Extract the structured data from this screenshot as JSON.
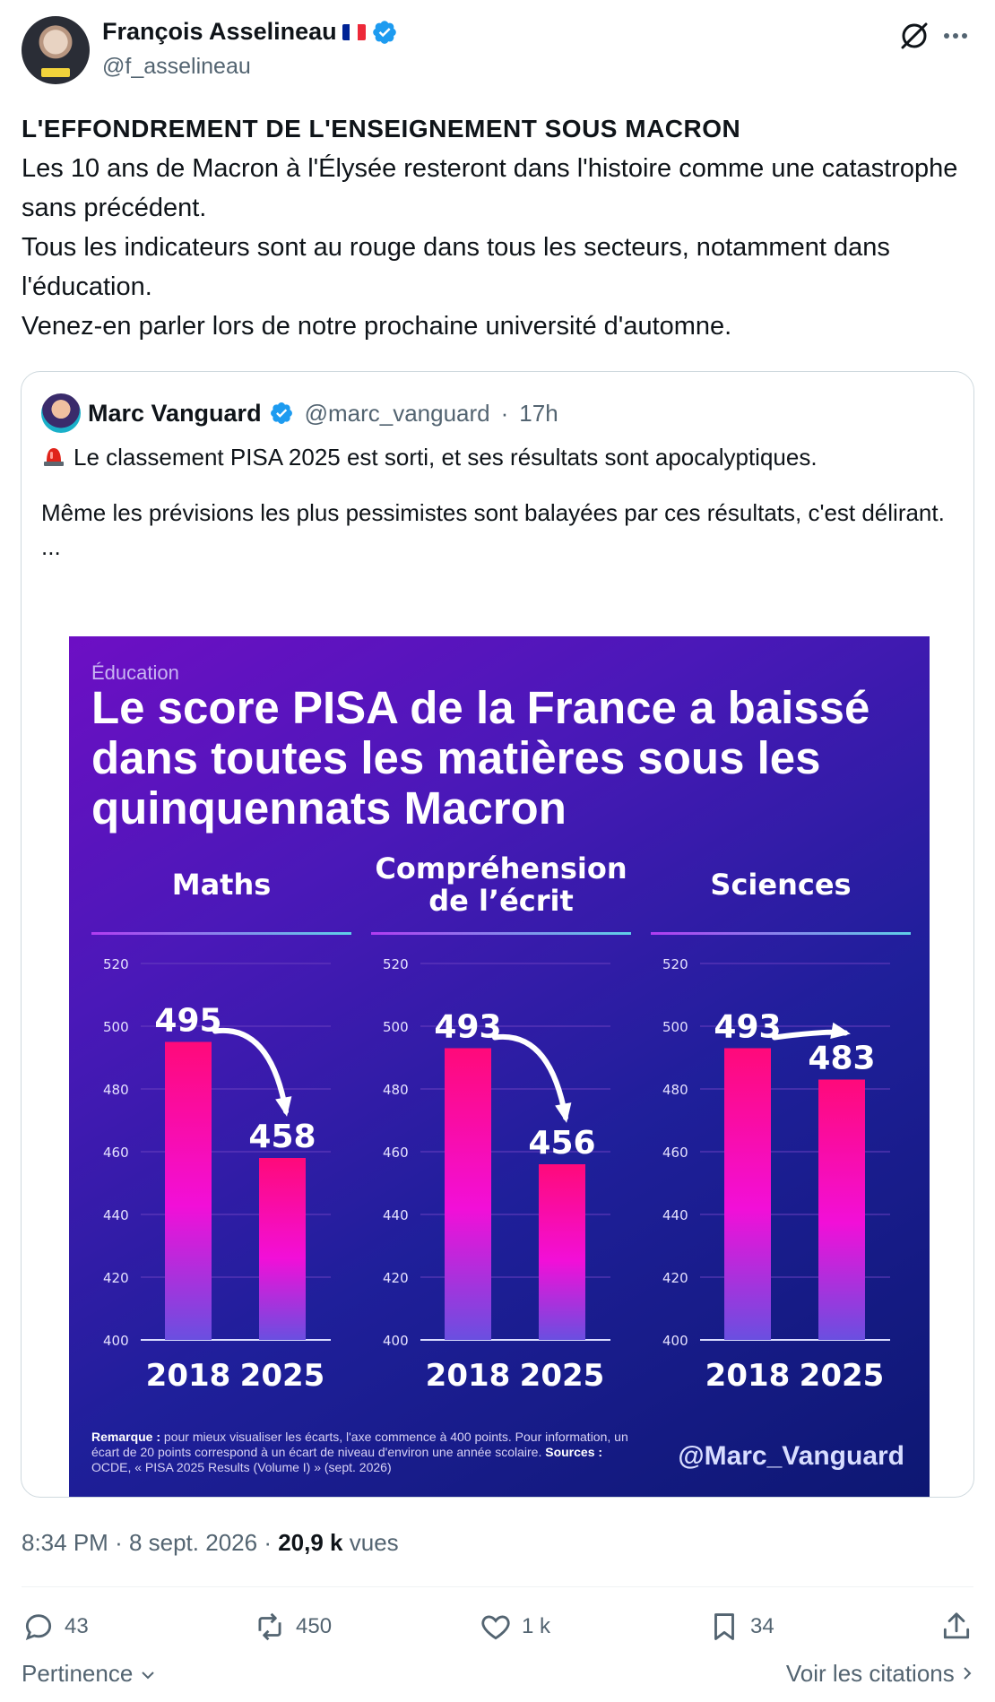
{
  "author": {
    "name": "François Asselineau",
    "handle": "@f_asselineau",
    "verified": true,
    "avatar_badge_text": "ASSELINEAU 2027"
  },
  "post": {
    "title": "L'EFFONDREMENT DE L'ENSEIGNEMENT SOUS MACRON",
    "paragraphs": [
      "Les 10 ans de Macron à l'Élysée resteront dans l'histoire comme une catastrophe sans précédent.",
      "Tous les indicateurs sont au rouge dans tous les secteurs, notamment dans l'éducation.",
      "Venez-en parler lors de notre prochaine université d'automne."
    ],
    "time": "8:34 PM",
    "date": "8 sept. 2026",
    "views": "20,9 k",
    "views_label": "vues"
  },
  "quote": {
    "name": "Marc Vanguard",
    "handle": "@marc_vanguard",
    "age": "17h",
    "line1": "Le classement PISA 2025 est sorti, et ses résultats sont apocalyptiques.",
    "line2": "Même les prévisions les plus pessimistes sont balayées par ces résultats, c'est délirant.",
    "ellipsis": "..."
  },
  "infographic": {
    "category": "Éducation",
    "title": "Le score PISA de la France a baissé dans toutes les matières sous les quinquennats Macron",
    "note_label": "Remarque :",
    "note_text": " pour mieux visualiser les écarts, l'axe commence à 400 points. Pour information, un écart de 20 points correspond à un écart de niveau d'environ une année scolaire. ",
    "sources_label": "Sources :",
    "sources_text": " OCDE, « PISA 2025 Results (Volume I) » (sept. 2026)",
    "watermark": "@Marc_Vanguard"
  },
  "chart_data": [
    {
      "type": "bar",
      "title": "Maths",
      "categories": [
        "2018",
        "2025"
      ],
      "values": [
        495,
        458
      ],
      "ylim": [
        400,
        520
      ],
      "yticks": [
        520,
        500,
        480,
        460,
        440,
        420,
        400
      ],
      "grid": true
    },
    {
      "type": "bar",
      "title": "Compréhension de l'écrit",
      "title_lines": [
        "Compréhension",
        "de l’écrit"
      ],
      "categories": [
        "2018",
        "2025"
      ],
      "values": [
        493,
        456
      ],
      "ylim": [
        400,
        520
      ],
      "yticks": [
        520,
        500,
        480,
        460,
        440,
        420,
        400
      ],
      "grid": true
    },
    {
      "type": "bar",
      "title": "Sciences",
      "categories": [
        "2018",
        "2025"
      ],
      "values": [
        493,
        483
      ],
      "ylim": [
        400,
        520
      ],
      "yticks": [
        520,
        500,
        480,
        460,
        440,
        420,
        400
      ],
      "grid": true
    }
  ],
  "actions": {
    "replies": "43",
    "reposts": "450",
    "likes": "1 k",
    "bookmarks": "34"
  },
  "footer": {
    "sort_label": "Pertinence",
    "quotes_label": "Voir les citations"
  },
  "colors": {
    "verified": "#1d9bf0",
    "bar_top": "#ff0a7a",
    "bar_mid": "#f20fd8",
    "bar_bottom": "#6a4fe0",
    "header_line": "#5fd0e8"
  }
}
